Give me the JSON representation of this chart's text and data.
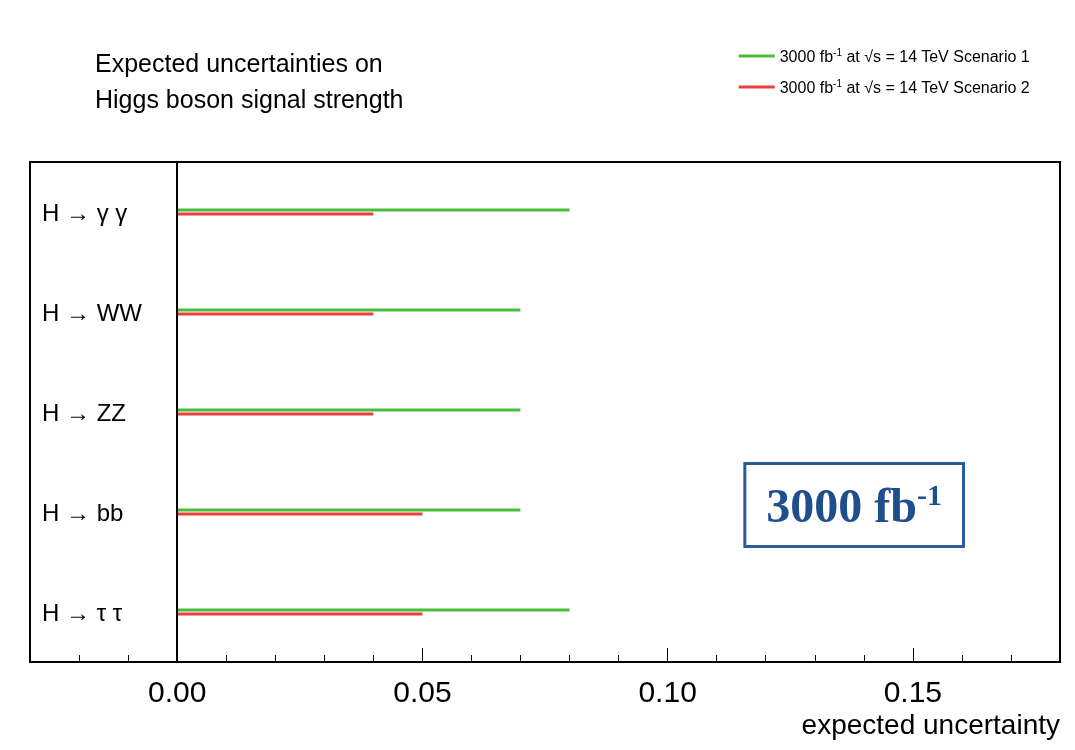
{
  "chart_data": {
    "type": "bar",
    "orientation": "horizontal",
    "title": "Expected uncertainties on\nHiggs boson signal strength",
    "xlabel": "expected uncertainty",
    "categories": [
      "H → γ γ",
      "H → WW",
      "H → ZZ",
      "H → bb",
      "H → τ τ"
    ],
    "series": [
      {
        "name": "3000 fb$^{-1}$ at √s = 14 TeV Scenario 1",
        "color": "#4cbb3c",
        "values": [
          0.08,
          0.07,
          0.07,
          0.07,
          0.08
        ]
      },
      {
        "name": "3000 fb$^{-1}$ at √s = 14 TeV Scenario 2",
        "color": "#e8413c",
        "values": [
          0.04,
          0.04,
          0.04,
          0.05,
          0.05
        ]
      }
    ],
    "xlim": [
      -0.03,
      0.18
    ],
    "xticks": [
      {
        "value": 0,
        "label": "0.00"
      },
      {
        "value": 0.05,
        "label": "0.05"
      },
      {
        "value": 0.1,
        "label": "0.10"
      },
      {
        "value": 0.15,
        "label": "0.15"
      }
    ],
    "ref_lines": [
      {
        "axis": "x",
        "value": 0,
        "color": "#000000"
      }
    ],
    "annotations": [
      "3000 fb$^{-1}$"
    ],
    "legend": "top right",
    "grid": false
  }
}
